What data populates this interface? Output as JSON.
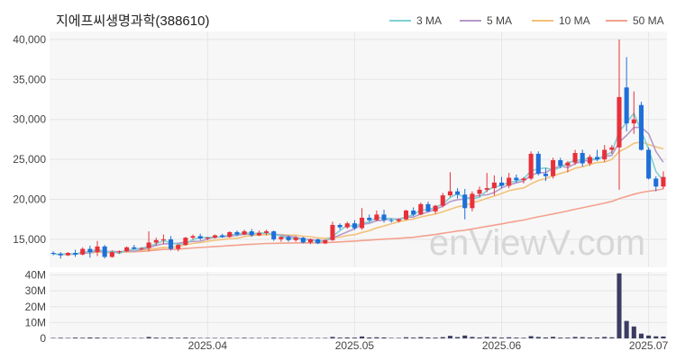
{
  "chart_data": {
    "type": "candlestick",
    "title": "지에프씨생명과학(388610)",
    "watermark": "enViewV.com",
    "legend": [
      {
        "name": "3 MA",
        "color": "#7fd1d1"
      },
      {
        "name": "5 MA",
        "color": "#b59ac9"
      },
      {
        "name": "10 MA",
        "color": "#f2c27a"
      },
      {
        "name": "50 MA",
        "color": "#f4a18e"
      }
    ],
    "price_axis": {
      "ylim": [
        11500,
        41000
      ],
      "ticks": [
        "15,000",
        "20,000",
        "25,000",
        "30,000",
        "35,000",
        "40,000"
      ],
      "tick_values": [
        15000,
        20000,
        25000,
        30000,
        35000,
        40000
      ]
    },
    "volume_axis": {
      "ylim": [
        0,
        42
      ],
      "ticks": [
        "0",
        "10M",
        "20M",
        "30M",
        "40M"
      ],
      "tick_values": [
        0,
        10,
        20,
        30,
        40
      ]
    },
    "x_axis": {
      "labels": [
        "2025.04",
        "2025.05",
        "2025.06",
        "2025.07"
      ],
      "label_index": [
        21,
        41,
        61,
        81
      ]
    },
    "colors": {
      "up": "#e8303a",
      "down": "#1e6fd9",
      "volume": "#3b3b63",
      "grid": "#e6e6e6",
      "plot_bg": "#f7f7f7"
    },
    "candles": [
      [
        13300,
        13500,
        13000,
        13200
      ],
      [
        13200,
        13400,
        12600,
        13000
      ],
      [
        13000,
        13400,
        12900,
        13300
      ],
      [
        13300,
        13700,
        12800,
        13100
      ],
      [
        13100,
        14000,
        13000,
        13800
      ],
      [
        13800,
        14200,
        12700,
        13400
      ],
      [
        13400,
        14800,
        12900,
        14100
      ],
      [
        14100,
        14300,
        12600,
        12800
      ],
      [
        12800,
        13600,
        12700,
        13400
      ],
      [
        13400,
        13600,
        13200,
        13500
      ],
      [
        13500,
        14100,
        13400,
        14000
      ],
      [
        14000,
        14300,
        13700,
        13800
      ],
      [
        13800,
        14000,
        13600,
        13900
      ],
      [
        13900,
        16000,
        13500,
        14600
      ],
      [
        14600,
        15200,
        14200,
        14900
      ],
      [
        14900,
        15600,
        14400,
        15000
      ],
      [
        15000,
        15400,
        13600,
        13800
      ],
      [
        13800,
        14400,
        13500,
        14300
      ],
      [
        14300,
        15300,
        14200,
        15200
      ],
      [
        15200,
        15600,
        15000,
        15400
      ],
      [
        15400,
        15700,
        14900,
        15100
      ],
      [
        15100,
        15300,
        14900,
        15200
      ],
      [
        15200,
        15600,
        15100,
        15500
      ],
      [
        15500,
        15700,
        15200,
        15300
      ],
      [
        15300,
        16000,
        15200,
        15900
      ],
      [
        15900,
        16100,
        15400,
        15600
      ],
      [
        15600,
        16200,
        15500,
        16000
      ],
      [
        16000,
        16300,
        15300,
        15500
      ],
      [
        15500,
        16100,
        15400,
        15800
      ],
      [
        15800,
        16200,
        15500,
        16000
      ],
      [
        16000,
        16100,
        14800,
        15000
      ],
      [
        15000,
        15400,
        14700,
        15300
      ],
      [
        15300,
        15500,
        14700,
        14900
      ],
      [
        14900,
        15400,
        14700,
        15200
      ],
      [
        15200,
        15300,
        14500,
        14600
      ],
      [
        14600,
        15100,
        14400,
        15000
      ],
      [
        15000,
        15100,
        14400,
        14500
      ],
      [
        14500,
        15000,
        14400,
        14900
      ],
      [
        14900,
        17200,
        14800,
        16800
      ],
      [
        16800,
        17000,
        16200,
        16500
      ],
      [
        16500,
        17200,
        16300,
        17000
      ],
      [
        17000,
        17400,
        16200,
        16400
      ],
      [
        16400,
        18900,
        16200,
        17700
      ],
      [
        17700,
        18100,
        17200,
        17400
      ],
      [
        17400,
        18600,
        17300,
        18100
      ],
      [
        18100,
        18700,
        17100,
        17400
      ],
      [
        17400,
        17600,
        17100,
        17300
      ],
      [
        17300,
        17600,
        17100,
        17500
      ],
      [
        17500,
        18700,
        17400,
        18600
      ],
      [
        18600,
        19000,
        17900,
        18100
      ],
      [
        18100,
        19600,
        18000,
        19400
      ],
      [
        19400,
        19700,
        18400,
        18500
      ],
      [
        18500,
        19300,
        18200,
        19200
      ],
      [
        19200,
        20800,
        19000,
        20500
      ],
      [
        20500,
        23400,
        20300,
        21000
      ],
      [
        21000,
        21400,
        20100,
        20600
      ],
      [
        20600,
        21300,
        17500,
        18900
      ],
      [
        18900,
        21000,
        18500,
        20700
      ],
      [
        20700,
        21600,
        20300,
        21200
      ],
      [
        21200,
        23300,
        20900,
        21400
      ],
      [
        21400,
        23000,
        20500,
        22100
      ],
      [
        22100,
        22800,
        21400,
        21700
      ],
      [
        21700,
        23300,
        21400,
        22700
      ],
      [
        22700,
        23100,
        22100,
        22400
      ],
      [
        22400,
        22800,
        22000,
        22600
      ],
      [
        22600,
        26000,
        22400,
        25700
      ],
      [
        25700,
        26000,
        23000,
        23200
      ],
      [
        23200,
        23900,
        22300,
        22900
      ],
      [
        22900,
        25200,
        22600,
        24900
      ],
      [
        24900,
        25200,
        23900,
        24200
      ],
      [
        24200,
        24800,
        23400,
        24600
      ],
      [
        24600,
        26200,
        24300,
        25800
      ],
      [
        25800,
        26200,
        24100,
        24500
      ],
      [
        24500,
        25600,
        24200,
        25300
      ],
      [
        25300,
        26200,
        24800,
        25000
      ],
      [
        25000,
        26800,
        24700,
        26200
      ],
      [
        26200,
        26800,
        25700,
        26500
      ],
      [
        26500,
        40000,
        21200,
        32800
      ],
      [
        34000,
        37800,
        28500,
        29500
      ],
      [
        29500,
        33500,
        28200,
        30000
      ],
      [
        31800,
        32200,
        26100,
        26200
      ],
      [
        26200,
        26500,
        22500,
        22600
      ],
      [
        22600,
        22900,
        21000,
        21600
      ],
      [
        21600,
        23500,
        21300,
        22800
      ]
    ],
    "volume": [
      0.3,
      0.4,
      0.3,
      0.5,
      0.4,
      0.6,
      0.5,
      0.4,
      0.3,
      0.3,
      0.3,
      0.3,
      0.3,
      0.9,
      0.5,
      0.4,
      0.5,
      0.4,
      0.5,
      0.4,
      0.3,
      0.3,
      0.3,
      0.3,
      0.4,
      0.3,
      0.4,
      0.3,
      0.3,
      0.3,
      0.4,
      0.3,
      0.3,
      0.3,
      0.3,
      0.3,
      0.3,
      0.3,
      0.9,
      0.5,
      0.6,
      0.5,
      1.2,
      0.6,
      0.7,
      0.6,
      0.3,
      0.3,
      0.7,
      0.5,
      0.8,
      0.6,
      0.5,
      0.8,
      1.6,
      0.8,
      1.8,
      0.9,
      0.6,
      0.9,
      0.8,
      0.5,
      0.7,
      0.5,
      0.4,
      1.4,
      0.9,
      0.6,
      1.0,
      0.5,
      0.5,
      0.9,
      0.8,
      0.6,
      0.6,
      0.9,
      0.7,
      41.0,
      11.0,
      7.5,
      3.0,
      1.8,
      1.3,
      1.2
    ]
  }
}
